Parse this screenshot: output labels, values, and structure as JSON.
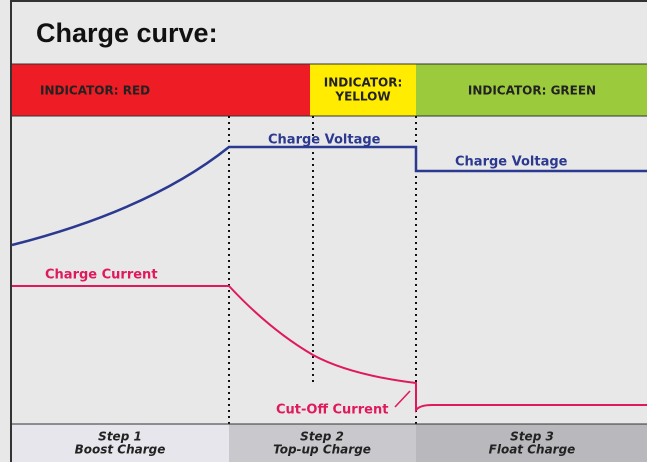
{
  "title": "Charge curve:",
  "indicators": [
    {
      "lines": [
        "INDICATOR: RED"
      ]
    },
    {
      "lines": [
        "INDICATOR:",
        "YELLOW"
      ]
    },
    {
      "lines": [
        "INDICATOR: GREEN"
      ]
    }
  ],
  "curve_labels": {
    "voltage_boost": "Charge Voltage",
    "voltage_float": "Charge Voltage",
    "current": "Charge Current",
    "cutoff": "Cut-Off Current"
  },
  "steps": [
    {
      "step": "Step 1",
      "name": "Boost Charge"
    },
    {
      "step": "Step 2",
      "name": "Top-up Charge"
    },
    {
      "step": "Step 3",
      "name": "Float Charge"
    }
  ]
}
